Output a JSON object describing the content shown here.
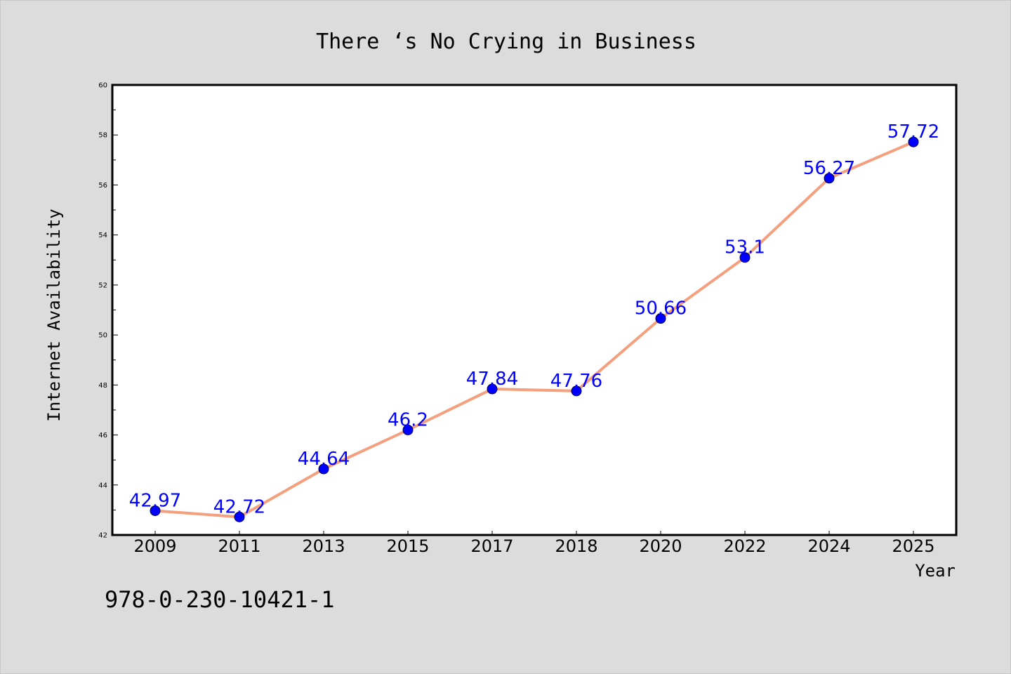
{
  "chart_data": {
    "type": "line",
    "title": "There ‘s No Crying in Business",
    "xlabel": "Year",
    "ylabel": "Internet Availability",
    "categories": [
      "2009",
      "2011",
      "2013",
      "2015",
      "2017",
      "2018",
      "2020",
      "2022",
      "2024",
      "2025"
    ],
    "series": [
      {
        "values": [
          42.97,
          42.72,
          44.64,
          46.2,
          47.84,
          47.76,
          50.66,
          53.1,
          56.27,
          57.72
        ],
        "data_labels": [
          "42.97",
          "42.72",
          "44.64",
          "46.2",
          "47.84",
          "47.76",
          "50.66",
          "53.1",
          "56.27",
          "57.72"
        ],
        "line_color": "#f4a07e",
        "marker_color": "#0000ff"
      }
    ],
    "ylim": [
      42,
      60
    ],
    "yticks": [
      "42",
      "44",
      "46",
      "48",
      "50",
      "52",
      "54",
      "56",
      "58",
      "60"
    ],
    "grid": false,
    "legend": "none",
    "label_color": "#0000ff"
  },
  "footer": {
    "isbn": "978-0-230-10421-1"
  }
}
